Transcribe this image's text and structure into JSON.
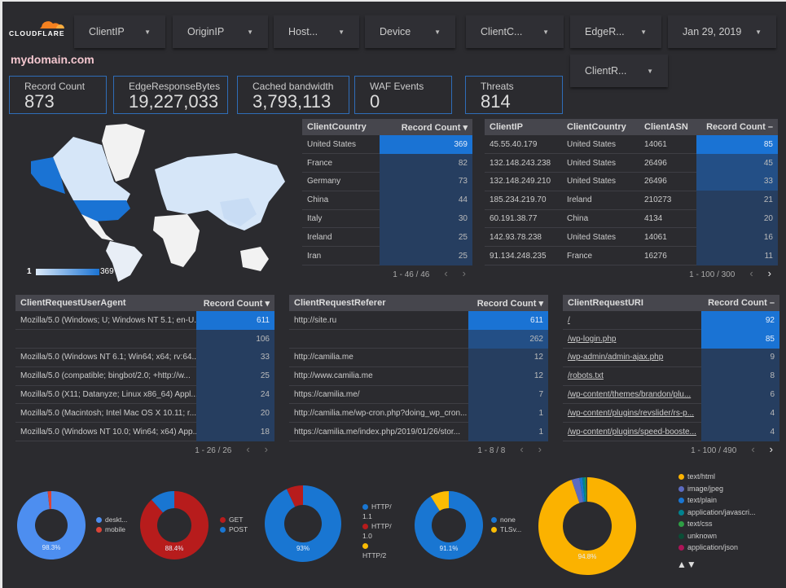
{
  "brand": {
    "logo_text": "CLOUDFLARE",
    "domain": "mydomain.com"
  },
  "filters": [
    "ClientIP",
    "OriginIP",
    "Host...",
    "Device",
    "ClientC...",
    "EdgeR...",
    "Jan 29, 2019",
    "ClientR..."
  ],
  "scorecards": [
    {
      "label": "Record Count",
      "value": "873"
    },
    {
      "label": "EdgeResponseBytes",
      "value": "19,227,033"
    },
    {
      "label": "Cached bandwidth",
      "value": "3,793,113"
    },
    {
      "label": "WAF Events",
      "value": "0"
    },
    {
      "label": "Threats",
      "value": "814"
    }
  ],
  "map": {
    "legend_min": "1",
    "legend_max": "369",
    "colors": {
      "low": "#dbe9f8",
      "high": "#1a73d4"
    }
  },
  "tables": {
    "country": {
      "headers": [
        "ClientCountry",
        "Record Count ▾"
      ],
      "rows": [
        [
          "United States",
          "369"
        ],
        [
          "France",
          "82"
        ],
        [
          "Germany",
          "73"
        ],
        [
          "China",
          "44"
        ],
        [
          "Italy",
          "30"
        ],
        [
          "Ireland",
          "25"
        ],
        [
          "Iran",
          "25"
        ]
      ],
      "pager": "1 - 46 / 46"
    },
    "ip": {
      "headers": [
        "ClientIP",
        "ClientCountry",
        "ClientASN",
        "Record Count –"
      ],
      "rows": [
        [
          "45.55.40.179",
          "United States",
          "14061",
          "85"
        ],
        [
          "132.148.243.238",
          "United States",
          "26496",
          "45"
        ],
        [
          "132.148.249.210",
          "United States",
          "26496",
          "33"
        ],
        [
          "185.234.219.70",
          "Ireland",
          "210273",
          "21"
        ],
        [
          "60.191.38.77",
          "China",
          "4134",
          "20"
        ],
        [
          "142.93.78.238",
          "United States",
          "14061",
          "16"
        ],
        [
          "91.134.248.235",
          "France",
          "16276",
          "11"
        ]
      ],
      "pager": "1 - 100 / 300"
    },
    "ua": {
      "headers": [
        "ClientRequestUserAgent",
        "Record Count ▾"
      ],
      "rows": [
        [
          "Mozilla/5.0 (Windows; U; Windows NT 5.1; en-U...",
          "611"
        ],
        [
          "",
          "106"
        ],
        [
          "Mozilla/5.0 (Windows NT 6.1; Win64; x64; rv:64....",
          "33"
        ],
        [
          "Mozilla/5.0 (compatible; bingbot/2.0; +http://w...",
          "25"
        ],
        [
          "Mozilla/5.0 (X11; Datanyze; Linux x86_64) Appl...",
          "24"
        ],
        [
          "Mozilla/5.0 (Macintosh; Intel Mac OS X 10.11; r...",
          "20"
        ],
        [
          "Mozilla/5.0 (Windows NT 10.0; Win64; x64) App...",
          "18"
        ]
      ],
      "pager": "1 - 26 / 26"
    },
    "ref": {
      "headers": [
        "ClientRequestReferer",
        "Record Count ▾"
      ],
      "rows": [
        [
          "http://site.ru",
          "611"
        ],
        [
          "",
          "262"
        ],
        [
          "http://camilia.me",
          "12"
        ],
        [
          "http://www.camilia.me",
          "12"
        ],
        [
          "https://camilia.me/",
          "7"
        ],
        [
          "http://camilia.me/wp-cron.php?doing_wp_cron...",
          "1"
        ],
        [
          "https://camilia.me/index.php/2019/01/26/stor...",
          "1"
        ]
      ],
      "pager": "1 - 8 / 8"
    },
    "uri": {
      "headers": [
        "ClientRequestURI",
        "Record Count –"
      ],
      "rows": [
        [
          "/",
          "92"
        ],
        [
          "/wp-login.php",
          "85"
        ],
        [
          "/wp-admin/admin-ajax.php",
          "9"
        ],
        [
          "/robots.txt",
          "8"
        ],
        [
          "/wp-content/themes/brandon/plu...",
          "6"
        ],
        [
          "/wp-content/plugins/revslider/rs-p...",
          "4"
        ],
        [
          "/wp-content/plugins/speed-booste...",
          "4"
        ]
      ],
      "pager": "1 - 100 / 490"
    }
  },
  "chart_data": [
    {
      "type": "pie",
      "donut": true,
      "categories": [
        "deskt...",
        "mobile"
      ],
      "values": [
        98.3,
        1.7
      ],
      "colors": [
        "#4d8ef0",
        "#db4437"
      ],
      "label": "98.3%"
    },
    {
      "type": "pie",
      "donut": true,
      "categories": [
        "GET",
        "POST"
      ],
      "values": [
        88.4,
        11.6
      ],
      "colors": [
        "#b71c1c",
        "#1976d2"
      ],
      "label": "88.4%"
    },
    {
      "type": "pie",
      "donut": true,
      "categories": [
        "HTTP/ 1.1",
        "HTTP/ 1.0",
        "HTTP/2"
      ],
      "values": [
        93,
        7,
        0
      ],
      "colors": [
        "#1976d2",
        "#b71c1c",
        "#fbbc04"
      ],
      "label": "93%"
    },
    {
      "type": "pie",
      "donut": true,
      "categories": [
        "none",
        "TLSv..."
      ],
      "values": [
        91.1,
        8.9
      ],
      "colors": [
        "#1976d2",
        "#fbbc04"
      ],
      "label": "91.1%"
    },
    {
      "type": "pie",
      "donut": true,
      "categories": [
        "text/html",
        "image/jpeg",
        "text/plain",
        "application/javascri...",
        "text/css",
        "unknown",
        "application/json"
      ],
      "values": [
        94.8,
        2.6,
        1.0,
        0.8,
        0.4,
        0.3,
        0.1
      ],
      "colors": [
        "#fbb200",
        "#5c6bc0",
        "#1976d2",
        "#00838f",
        "#2e9e44",
        "#0b4d36",
        "#ad1457"
      ],
      "label": "94.8%"
    }
  ],
  "legend_nav": "▲▼"
}
